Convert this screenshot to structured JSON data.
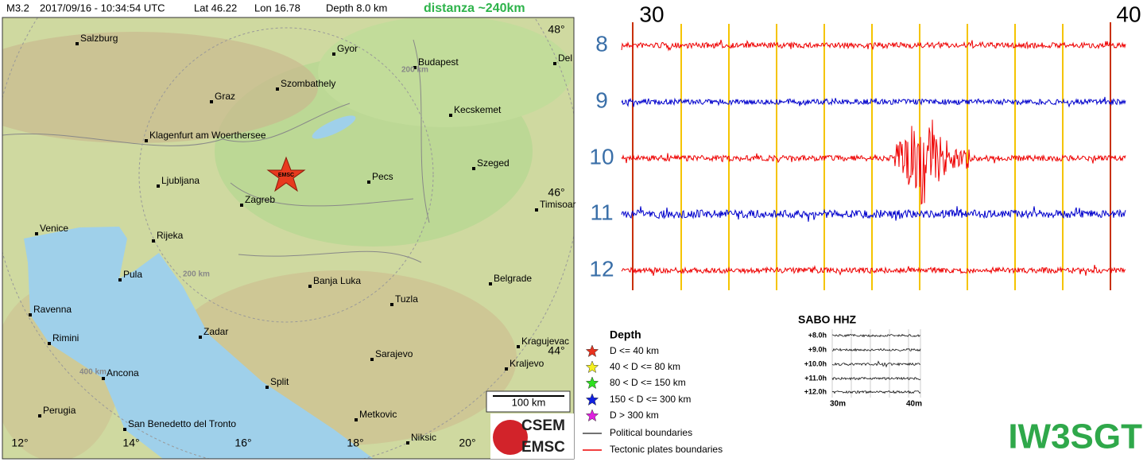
{
  "header": {
    "magnitude": "M3.2",
    "datetime": "2017/09/16 - 10:34:54 UTC",
    "lat": "Lat 46.22",
    "lon": "Lon 16.78",
    "depth": "Depth   8.0 km",
    "distance": "distanza ~240km"
  },
  "map": {
    "cities": [
      "Salzburg",
      "Gyor",
      "Budapest",
      "Del",
      "Szombathely",
      "Graz",
      "Kecskemet",
      "Klagenfurt am Woerthersee",
      "Szeged",
      "Ljubljana",
      "Pecs",
      "Zagreb",
      "Timisoar",
      "Venice",
      "Rijeka",
      "Pula",
      "Belgrade",
      "Banja Luka",
      "Tuzla",
      "Ravenna",
      "Rimini",
      "Zadar",
      "Kragujevac",
      "Sarajevo",
      "Ancona",
      "Kraljevo",
      "Split",
      "Perugia",
      "San Benedetto del Tronto",
      "Metkovic",
      "Niksic"
    ],
    "lat_labels": [
      "48°",
      "46°",
      "44°"
    ],
    "lon_labels": [
      "12°",
      "14°",
      "16°",
      "18°",
      "20°"
    ],
    "ring_labels": [
      "200 km",
      "200 km",
      "400 km"
    ],
    "marker": "EMSC",
    "scale": "100 km"
  },
  "seismogram": {
    "minute_labels": [
      "30",
      "40"
    ],
    "hour_labels": [
      "8",
      "9",
      "10",
      "11",
      "12"
    ]
  },
  "legend": {
    "title": "Depth",
    "items": [
      "D <= 40 km",
      "40 < D <= 80 km",
      "80 < D <= 150 km",
      "150 < D <= 300 km",
      "D > 300 km"
    ],
    "lines": [
      "Political boundaries",
      "Tectonic plates boundaries"
    ]
  },
  "logo": {
    "top": "CSEM",
    "bottom": "EMSC"
  },
  "thumbnail": {
    "title": "SABO HHZ",
    "rows": [
      "+8.0h",
      "+9.0h",
      "+10.0h",
      "+11.0h",
      "+12.0h"
    ],
    "x_labels": [
      "30m",
      "40m"
    ]
  },
  "callsign": "IW3SGT"
}
